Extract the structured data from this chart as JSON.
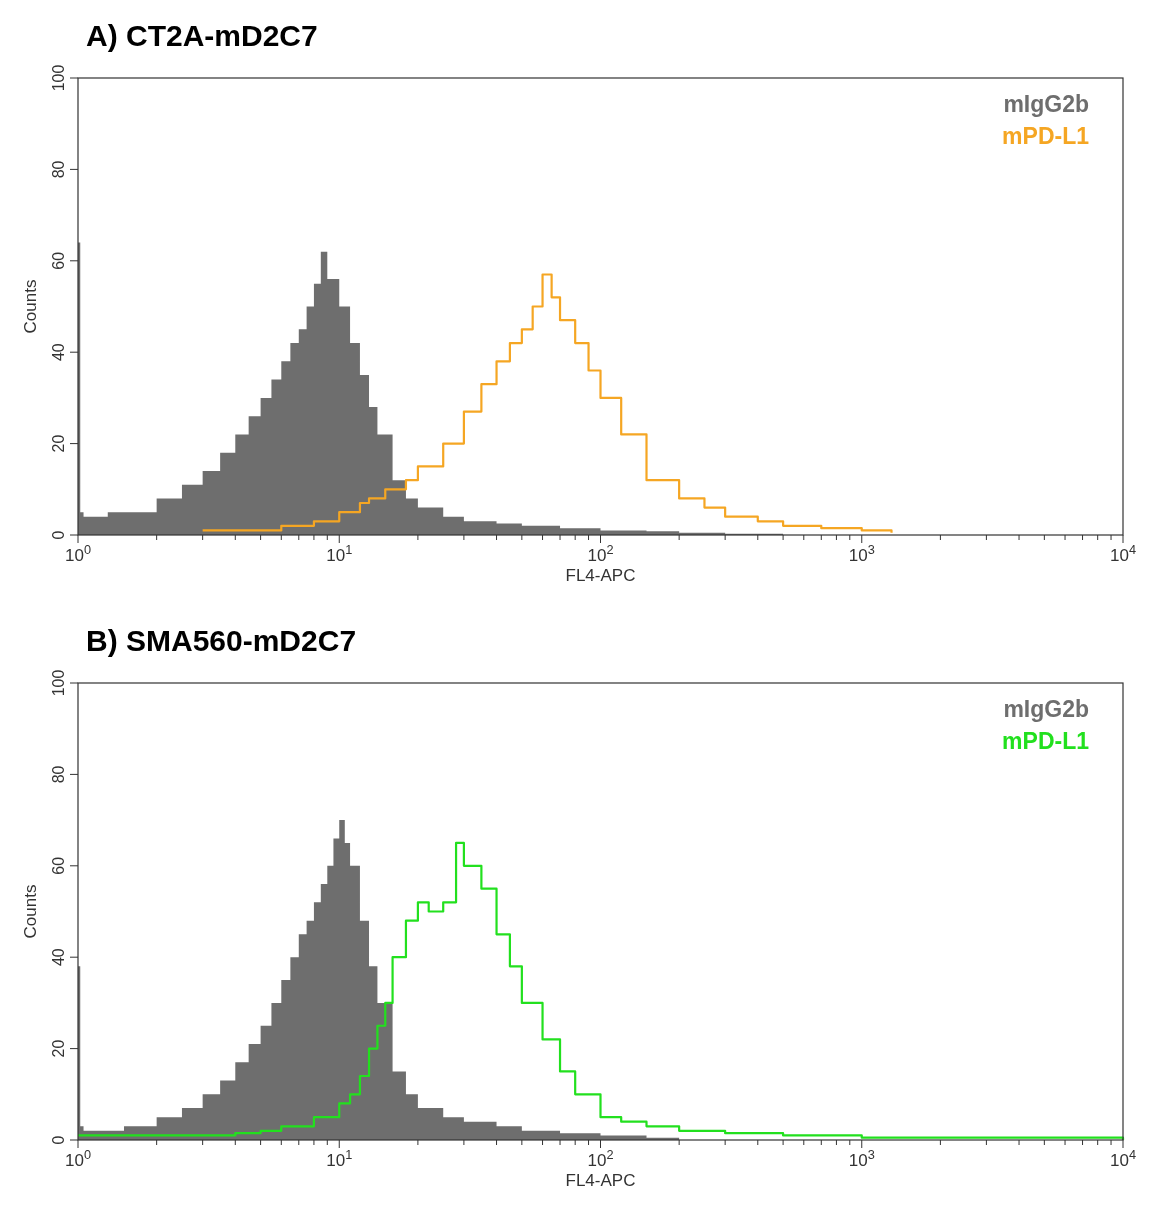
{
  "chart_data": [
    {
      "type": "area",
      "title": "A) CT2A-mD2C7",
      "xlabel": "FL4-APC",
      "ylabel": "Counts",
      "log": "x",
      "xlim": [
        1,
        10000
      ],
      "ylim": [
        0,
        100
      ],
      "yticks": [
        0,
        20,
        40,
        60,
        80,
        100
      ],
      "xticks": [
        {
          "value": 1,
          "label": "10$^{0}$"
        },
        {
          "value": 2,
          "label": null
        },
        {
          "value": 3,
          "label": null
        },
        {
          "value": 4,
          "label": null
        },
        {
          "value": 5,
          "label": null
        },
        {
          "value": 6,
          "label": null
        },
        {
          "value": 7,
          "label": null
        },
        {
          "value": 8,
          "label": null
        },
        {
          "value": 9,
          "label": null
        },
        {
          "value": 10,
          "label": "10$^{1}$"
        },
        {
          "value": 20,
          "label": null
        },
        {
          "value": 30,
          "label": null
        },
        {
          "value": 40,
          "label": null
        },
        {
          "value": 50,
          "label": null
        },
        {
          "value": 60,
          "label": null
        },
        {
          "value": 70,
          "label": null
        },
        {
          "value": 80,
          "label": null
        },
        {
          "value": 90,
          "label": null
        },
        {
          "value": 100,
          "label": "10$^{2}$"
        },
        {
          "value": 200,
          "label": null
        },
        {
          "value": 300,
          "label": null
        },
        {
          "value": 400,
          "label": null
        },
        {
          "value": 500,
          "label": null
        },
        {
          "value": 600,
          "label": null
        },
        {
          "value": 700,
          "label": null
        },
        {
          "value": 800,
          "label": null
        },
        {
          "value": 900,
          "label": null
        },
        {
          "value": 1000,
          "label": "10$^{3}$"
        },
        {
          "value": 2000,
          "label": null
        },
        {
          "value": 3000,
          "label": null
        },
        {
          "value": 4000,
          "label": null
        },
        {
          "value": 5000,
          "label": null
        },
        {
          "value": 6000,
          "label": null
        },
        {
          "value": 7000,
          "label": null
        },
        {
          "value": 8000,
          "label": null
        },
        {
          "value": 9000,
          "label": null
        },
        {
          "value": 10000,
          "label": "10$^{4}$"
        }
      ],
      "grid": false,
      "legend": "top right",
      "marker": "none",
      "series": [
        {
          "name": "mIgG2b",
          "color": "#6e6e6e",
          "x": [
            1,
            1.02,
            1.05,
            1.1,
            1.3,
            1.5,
            2,
            2.5,
            3,
            3.5,
            4,
            4.5,
            5,
            5.5,
            6,
            6.5,
            7,
            7.5,
            8,
            8.5,
            9,
            10,
            11,
            12,
            13,
            14,
            16,
            18,
            20,
            25,
            30,
            40,
            50,
            70,
            100,
            150,
            200,
            300,
            500,
            10000
          ],
          "values": [
            64,
            5,
            4,
            4,
            5,
            5,
            8,
            11,
            14,
            18,
            22,
            26,
            30,
            34,
            38,
            42,
            45,
            50,
            55,
            62,
            56,
            50,
            42,
            35,
            28,
            22,
            12,
            8,
            6,
            4,
            3,
            2.5,
            2,
            1.5,
            1,
            0.8,
            0.5,
            0.3,
            0,
            0
          ]
        },
        {
          "name": "mPD-L1",
          "type": "step",
          "color": "#f5a623",
          "x": [
            3,
            4,
            6,
            8,
            10,
            12,
            13,
            15,
            18,
            20,
            25,
            30,
            35,
            40,
            45,
            50,
            55,
            60,
            65,
            70,
            80,
            90,
            100,
            120,
            150,
            200,
            250,
            300,
            400,
            500,
            700,
            1000,
            1300
          ],
          "values": [
            1,
            1,
            2,
            3,
            5,
            7,
            8,
            10,
            12,
            15,
            20,
            27,
            33,
            38,
            42,
            45,
            50,
            57,
            52,
            47,
            42,
            36,
            30,
            22,
            12,
            8,
            6,
            4,
            3,
            2,
            1.5,
            1,
            0.5
          ]
        }
      ]
    },
    {
      "type": "area",
      "title": "B) SMA560-mD2C7",
      "xlabel": "FL4-APC",
      "ylabel": "Counts",
      "log": "x",
      "xlim": [
        1,
        10000
      ],
      "ylim": [
        0,
        100
      ],
      "yticks": [
        0,
        20,
        40,
        60,
        80,
        100
      ],
      "xticks": [
        {
          "value": 1,
          "label": "10$^{0}$"
        },
        {
          "value": 2,
          "label": null
        },
        {
          "value": 3,
          "label": null
        },
        {
          "value": 4,
          "label": null
        },
        {
          "value": 5,
          "label": null
        },
        {
          "value": 6,
          "label": null
        },
        {
          "value": 7,
          "label": null
        },
        {
          "value": 8,
          "label": null
        },
        {
          "value": 9,
          "label": null
        },
        {
          "value": 10,
          "label": "10$^{1}$"
        },
        {
          "value": 20,
          "label": null
        },
        {
          "value": 30,
          "label": null
        },
        {
          "value": 40,
          "label": null
        },
        {
          "value": 50,
          "label": null
        },
        {
          "value": 60,
          "label": null
        },
        {
          "value": 70,
          "label": null
        },
        {
          "value": 80,
          "label": null
        },
        {
          "value": 90,
          "label": null
        },
        {
          "value": 100,
          "label": "10$^{2}$"
        },
        {
          "value": 200,
          "label": null
        },
        {
          "value": 300,
          "label": null
        },
        {
          "value": 400,
          "label": null
        },
        {
          "value": 500,
          "label": null
        },
        {
          "value": 600,
          "label": null
        },
        {
          "value": 700,
          "label": null
        },
        {
          "value": 800,
          "label": null
        },
        {
          "value": 900,
          "label": null
        },
        {
          "value": 1000,
          "label": "10$^{3}$"
        },
        {
          "value": 2000,
          "label": null
        },
        {
          "value": 3000,
          "label": null
        },
        {
          "value": 4000,
          "label": null
        },
        {
          "value": 5000,
          "label": null
        },
        {
          "value": 6000,
          "label": null
        },
        {
          "value": 7000,
          "label": null
        },
        {
          "value": 8000,
          "label": null
        },
        {
          "value": 9000,
          "label": null
        },
        {
          "value": 10000,
          "label": "10$^{4}$"
        }
      ],
      "grid": false,
      "legend": "top right",
      "marker": "none",
      "series": [
        {
          "name": "mIgG2b",
          "color": "#6e6e6e",
          "x": [
            1,
            1.02,
            1.05,
            1.1,
            1.5,
            2,
            2.5,
            3,
            3.5,
            4,
            4.5,
            5,
            5.5,
            6,
            6.5,
            7,
            7.5,
            8,
            8.5,
            9,
            9.5,
            10,
            10.5,
            11,
            12,
            13,
            14,
            16,
            18,
            20,
            25,
            30,
            40,
            50,
            70,
            100,
            150,
            200,
            10000
          ],
          "values": [
            38,
            3,
            2,
            2,
            3,
            5,
            7,
            10,
            13,
            17,
            21,
            25,
            30,
            35,
            40,
            45,
            48,
            52,
            56,
            60,
            66,
            70,
            65,
            60,
            48,
            38,
            30,
            15,
            10,
            7,
            5,
            4,
            3,
            2,
            1.5,
            1,
            0.5,
            0,
            0
          ]
        },
        {
          "name": "mPD-L1",
          "type": "step",
          "color": "#22e01e",
          "x": [
            1,
            2,
            3,
            4,
            5,
            6,
            8,
            10,
            11,
            12,
            13,
            14,
            15,
            16,
            18,
            20,
            22,
            25,
            28,
            30,
            35,
            40,
            45,
            50,
            60,
            70,
            80,
            100,
            120,
            150,
            200,
            300,
            500,
            1000,
            10000
          ],
          "values": [
            1,
            1,
            1,
            1.5,
            2,
            3,
            5,
            8,
            10,
            14,
            20,
            25,
            30,
            40,
            48,
            52,
            50,
            52,
            65,
            60,
            55,
            45,
            38,
            30,
            22,
            15,
            10,
            5,
            4,
            3,
            2,
            1.5,
            1,
            0.5,
            0
          ]
        }
      ]
    }
  ]
}
